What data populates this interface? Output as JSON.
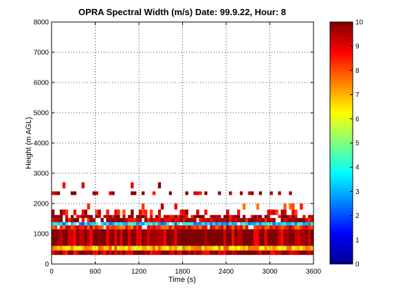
{
  "chart_data": {
    "type": "heatmap",
    "title": "OPRA Spectral Width (m/s)  Date: 99.9.22, Hour: 8",
    "xlabel": "Time (s)",
    "ylabel": "Height (m AGL)",
    "xlim": [
      0,
      3600
    ],
    "ylim": [
      0,
      8000
    ],
    "xticks": [
      "0",
      "600",
      "1200",
      "1800",
      "2400",
      "3000",
      "3600"
    ],
    "yticks": [
      "0",
      "1000",
      "2000",
      "3000",
      "4000",
      "5000",
      "6000",
      "7000",
      "8000"
    ],
    "grid": true,
    "colorbar": {
      "range": [
        0,
        10
      ],
      "ticks": [
        "0",
        "1",
        "2",
        "3",
        "4",
        "5",
        "6",
        "7",
        "8",
        "9",
        "10"
      ],
      "colormap": "jet"
    },
    "bands": [
      {
        "h0": 300,
        "h1": 450,
        "value": 9.7,
        "coverage": 1.0
      },
      {
        "h0": 450,
        "h1": 600,
        "value": 6.8,
        "coverage": 1.0
      },
      {
        "h0": 600,
        "h1": 1150,
        "value": 9.8,
        "coverage": 1.0
      },
      {
        "h0": 1150,
        "h1": 1280,
        "value": 8.5,
        "coverage": 0.95
      },
      {
        "h0": 1280,
        "h1": 1380,
        "value": 3.2,
        "coverage": 0.95
      },
      {
        "h0": 1380,
        "h1": 1520,
        "value": 9.5,
        "coverage": 0.9
      },
      {
        "h0": 1520,
        "h1": 1620,
        "value": 9.6,
        "coverage": 0.75
      },
      {
        "h0": 1620,
        "h1": 1800,
        "value": 9.0,
        "coverage": 0.35
      },
      {
        "h0": 1800,
        "h1": 2000,
        "value": 8.5,
        "coverage": 0.12
      },
      {
        "h0": 2280,
        "h1": 2400,
        "value": 9.7,
        "coverage": 0.35
      },
      {
        "h0": 2500,
        "h1": 2700,
        "value": 9.5,
        "coverage": 0.06
      }
    ]
  }
}
